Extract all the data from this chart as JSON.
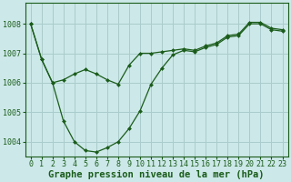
{
  "xlabel": "Graphe pression niveau de la mer (hPa)",
  "ylabel": "",
  "bg_color": "#cce8e8",
  "grid_color": "#aacccc",
  "line_color": "#1a5c1a",
  "marker_color": "#1a5c1a",
  "xlim": [
    -0.5,
    23.5
  ],
  "ylim": [
    1003.5,
    1008.7
  ],
  "yticks": [
    1004,
    1005,
    1006,
    1007,
    1008
  ],
  "xticks": [
    0,
    1,
    2,
    3,
    4,
    5,
    6,
    7,
    8,
    9,
    10,
    11,
    12,
    13,
    14,
    15,
    16,
    17,
    18,
    19,
    20,
    21,
    22,
    23
  ],
  "series1_x": [
    0,
    1,
    2,
    3,
    4,
    5,
    6,
    7,
    8,
    9,
    10,
    11,
    12,
    13,
    14,
    15,
    16,
    17,
    18,
    19,
    20,
    21,
    22,
    23
  ],
  "series1_y": [
    1008.0,
    1006.8,
    1006.0,
    1004.7,
    1004.0,
    1003.7,
    1003.65,
    1003.8,
    1004.0,
    1004.45,
    1005.05,
    1005.95,
    1006.5,
    1006.95,
    1007.1,
    1007.05,
    1007.2,
    1007.3,
    1007.55,
    1007.6,
    1008.0,
    1008.0,
    1007.8,
    1007.75
  ],
  "series2_x": [
    0,
    1,
    2,
    3,
    4,
    5,
    6,
    7,
    8,
    9,
    10,
    11,
    12,
    13,
    14,
    15,
    16,
    17,
    18,
    19,
    20,
    21,
    22,
    23
  ],
  "series2_y": [
    1008.0,
    1006.8,
    1006.0,
    1006.1,
    1006.3,
    1006.45,
    1006.3,
    1006.1,
    1005.95,
    1006.6,
    1007.0,
    1007.0,
    1007.05,
    1007.1,
    1007.15,
    1007.1,
    1007.25,
    1007.35,
    1007.6,
    1007.65,
    1008.05,
    1008.05,
    1007.85,
    1007.8
  ],
  "xlabel_fontsize": 7.5,
  "tick_fontsize": 6.0,
  "figsize": [
    3.2,
    2.0
  ],
  "dpi": 100
}
